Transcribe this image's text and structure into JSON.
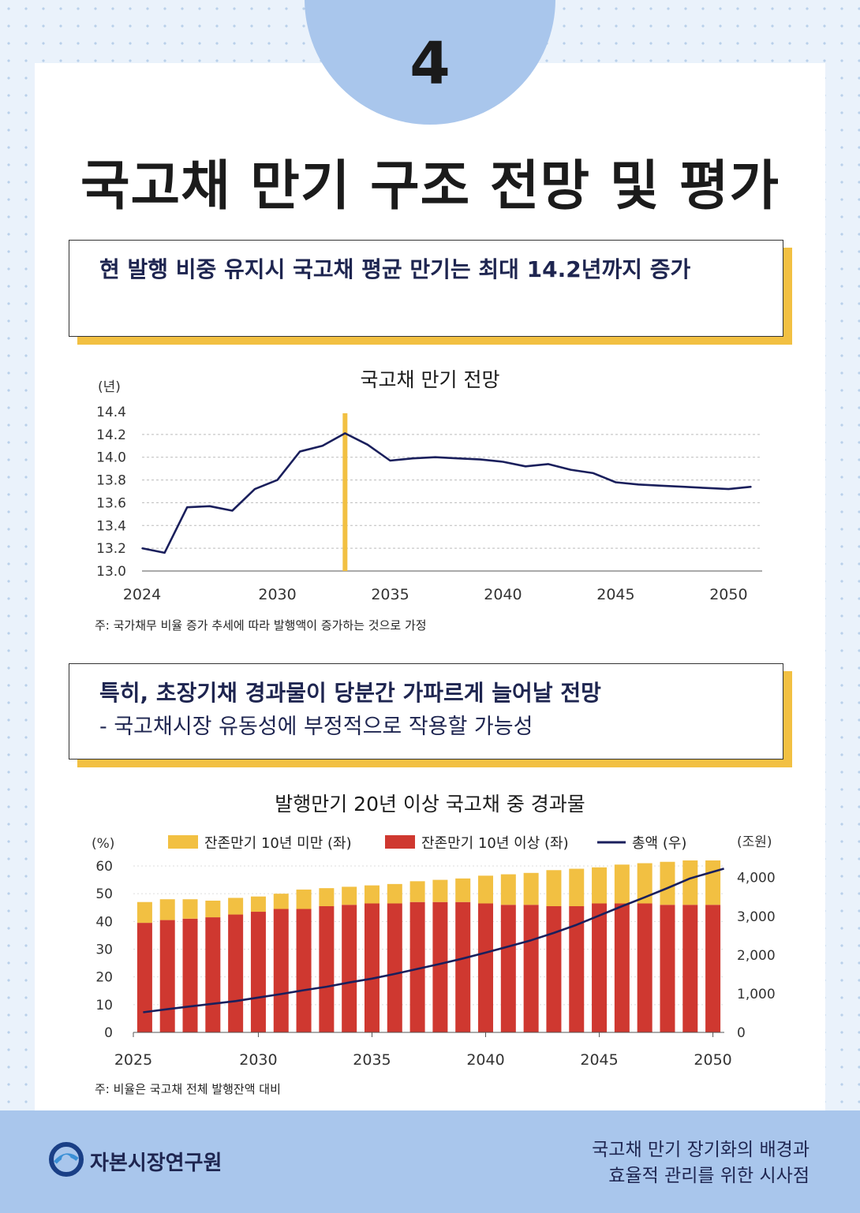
{
  "page_number": "4",
  "title": "국고채 만기 구조 전망 및 평가",
  "callout1": {
    "headline": "현 발행 비중 유지시 국고채 평균 만기는 최대 14.2년까지 증가"
  },
  "callout2": {
    "headline": "특히, 초장기채 경과물이 당분간 가파르게 늘어날 전망",
    "sub": "- 국고채시장 유동성에 부정적으로 작용할 가능성"
  },
  "footer": {
    "org": "자본시장연구원",
    "report_line1": "국고채 만기 장기화의 배경과",
    "report_line2": "효율적 관리를 위한 시사점"
  },
  "colors": {
    "navy": "#1a1f5c",
    "yellow": "#f2c042",
    "red": "#cf3830",
    "accent_blue": "#a9c6ec"
  },
  "chart_data": [
    {
      "type": "line",
      "title": "국고채 만기 전망",
      "ylabel": "(년)",
      "ylim": [
        13.0,
        14.4
      ],
      "yticks": [
        "14.4",
        "14.2",
        "14.0",
        "13.8",
        "13.6",
        "13.4",
        "13.2",
        "13.0"
      ],
      "xticks": [
        "2024",
        "2030",
        "2035",
        "2040",
        "2045",
        "2050"
      ],
      "x": [
        2024,
        2025,
        2026,
        2027,
        2028,
        2029,
        2030,
        2031,
        2032,
        2033,
        2034,
        2035,
        2036,
        2037,
        2038,
        2039,
        2040,
        2041,
        2042,
        2043,
        2044,
        2045,
        2046,
        2047,
        2048,
        2049,
        2050,
        2051
      ],
      "values": [
        13.2,
        13.16,
        13.56,
        13.57,
        13.53,
        13.72,
        13.8,
        14.05,
        14.1,
        14.21,
        14.11,
        13.97,
        13.99,
        14.0,
        13.99,
        13.98,
        13.96,
        13.92,
        13.94,
        13.89,
        13.86,
        13.78,
        13.76,
        13.75,
        13.74,
        13.73,
        13.72,
        13.74
      ],
      "highlight_year": 2033,
      "note": "주: 국가채무 비율 증가 추세에 따라 발행액이 증가하는 것으로 가정"
    },
    {
      "type": "bar",
      "stacked": true,
      "title": "발행만기 20년 이상 국고채 중 경과물",
      "y_left_label": "(%)",
      "y_right_label": "(조원)",
      "y_left_lim": [
        0,
        60
      ],
      "y_right_lim": [
        0,
        4300
      ],
      "y_left_ticks": [
        "60",
        "50",
        "40",
        "30",
        "20",
        "10",
        "0"
      ],
      "y_right_ticks": [
        "4,000",
        "3,000",
        "2,000",
        "1,000",
        "0"
      ],
      "xticks": [
        "2025",
        "2030",
        "2035",
        "2040",
        "2045",
        "2050"
      ],
      "categories": [
        2025,
        2026,
        2027,
        2028,
        2029,
        2030,
        2031,
        2032,
        2033,
        2034,
        2035,
        2036,
        2037,
        2038,
        2039,
        2040,
        2041,
        2042,
        2043,
        2044,
        2045,
        2046,
        2047,
        2048,
        2049,
        2050
      ],
      "series": [
        {
          "name": "잔존만기 10년 이상 (좌)",
          "color": "#cf3830",
          "values": [
            39.5,
            40.5,
            41,
            41.5,
            42.5,
            43.5,
            44.5,
            44.5,
            45.5,
            46,
            46.5,
            46.5,
            47,
            47,
            47,
            46.5,
            46,
            46,
            45.5,
            45.5,
            46.5,
            46.5,
            46.5,
            46,
            46,
            46
          ]
        },
        {
          "name": "잔존만기 10년 미만 (좌)",
          "color": "#f2c042",
          "values": [
            7.5,
            7.5,
            7,
            6,
            6,
            5.5,
            5.5,
            7,
            6.5,
            6.5,
            6.5,
            7,
            7.5,
            8,
            8.5,
            10,
            11,
            11.5,
            13,
            13.5,
            13,
            14,
            14.5,
            15.5,
            16,
            16
          ]
        },
        {
          "name": "총액 (우)",
          "color": "#1a1f5c",
          "values": [
            520,
            600,
            670,
            740,
            810,
            900,
            990,
            1090,
            1180,
            1290,
            1390,
            1510,
            1640,
            1770,
            1910,
            2060,
            2220,
            2380,
            2570,
            2780,
            3020,
            3260,
            3490,
            3730,
            3980,
            4230
          ]
        }
      ],
      "legend": [
        "잔존만기 10년 미만 (좌)",
        "잔존만기 10년 이상 (좌)",
        "총액 (우)"
      ],
      "note": "주: 비율은 국고채 전체 발행잔액 대비"
    }
  ]
}
